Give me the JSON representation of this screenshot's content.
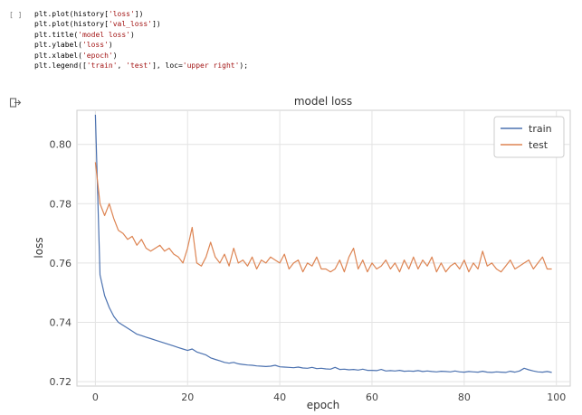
{
  "cell": {
    "run_bracket": "[ ]",
    "code_lines": [
      [
        {
          "t": "plt.plot(history["
        },
        {
          "t": "'loss'",
          "s": 1
        },
        {
          "t": "])"
        }
      ],
      [
        {
          "t": "plt.plot(history["
        },
        {
          "t": "'val_loss'",
          "s": 1
        },
        {
          "t": "])"
        }
      ],
      [
        {
          "t": "plt.title("
        },
        {
          "t": "'model loss'",
          "s": 1
        },
        {
          "t": ")"
        }
      ],
      [
        {
          "t": "plt.ylabel("
        },
        {
          "t": "'loss'",
          "s": 1
        },
        {
          "t": ")"
        }
      ],
      [
        {
          "t": "plt.xlabel("
        },
        {
          "t": "'epoch'",
          "s": 1
        },
        {
          "t": ")"
        }
      ],
      [
        {
          "t": "plt.legend(["
        },
        {
          "t": "'train'",
          "s": 1
        },
        {
          "t": ", "
        },
        {
          "t": "'test'",
          "s": 1
        },
        {
          "t": "], loc="
        },
        {
          "t": "'upper right'",
          "s": 1
        },
        {
          "t": ");"
        }
      ]
    ]
  },
  "output": {
    "icon": "output-arrow-icon"
  },
  "chart_data": {
    "type": "line",
    "title": "model loss",
    "xlabel": "epoch",
    "ylabel": "loss",
    "xlim": [
      -4,
      103
    ],
    "ylim": [
      0.7185,
      0.8115
    ],
    "xticks": [
      0,
      20,
      40,
      60,
      80,
      100
    ],
    "yticks": [
      0.72,
      0.74,
      0.76,
      0.78,
      0.8
    ],
    "ytick_labels": [
      "0.72",
      "0.74",
      "0.76",
      "0.78",
      "0.80"
    ],
    "grid": true,
    "legend_position": "top-right",
    "series": [
      {
        "name": "train",
        "color": "#4c72b0",
        "values": [
          0.81,
          0.756,
          0.749,
          0.745,
          0.742,
          0.74,
          0.739,
          0.738,
          0.737,
          0.736,
          0.7355,
          0.735,
          0.7345,
          0.734,
          0.7335,
          0.733,
          0.7325,
          0.732,
          0.7315,
          0.731,
          0.7305,
          0.731,
          0.73,
          0.7295,
          0.729,
          0.728,
          0.7275,
          0.727,
          0.7265,
          0.7262,
          0.7265,
          0.726,
          0.7258,
          0.7256,
          0.7255,
          0.7253,
          0.7252,
          0.7251,
          0.7252,
          0.7255,
          0.725,
          0.7249,
          0.7248,
          0.7247,
          0.7249,
          0.7246,
          0.7245,
          0.7248,
          0.7244,
          0.7245,
          0.7243,
          0.7242,
          0.7248,
          0.7241,
          0.7242,
          0.724,
          0.7241,
          0.7239,
          0.7242,
          0.7238,
          0.7238,
          0.7237,
          0.7241,
          0.7236,
          0.7237,
          0.7236,
          0.7238,
          0.7235,
          0.7236,
          0.7235,
          0.7237,
          0.7234,
          0.7236,
          0.7234,
          0.7233,
          0.7235,
          0.7234,
          0.7233,
          0.7236,
          0.7233,
          0.7232,
          0.7234,
          0.7233,
          0.7232,
          0.7235,
          0.7232,
          0.7231,
          0.7233,
          0.7232,
          0.7231,
          0.7235,
          0.7232,
          0.7236,
          0.7245,
          0.724,
          0.7236,
          0.7233,
          0.7232,
          0.7234,
          0.7231
        ]
      },
      {
        "name": "test",
        "color": "#dd8452",
        "values": [
          0.794,
          0.78,
          0.776,
          0.78,
          0.775,
          0.771,
          0.77,
          0.768,
          0.769,
          0.766,
          0.768,
          0.765,
          0.764,
          0.765,
          0.766,
          0.764,
          0.765,
          0.763,
          0.762,
          0.76,
          0.765,
          0.772,
          0.76,
          0.759,
          0.762,
          0.767,
          0.762,
          0.76,
          0.763,
          0.759,
          0.765,
          0.76,
          0.761,
          0.759,
          0.762,
          0.758,
          0.761,
          0.76,
          0.762,
          0.761,
          0.76,
          0.763,
          0.758,
          0.76,
          0.761,
          0.757,
          0.76,
          0.759,
          0.762,
          0.758,
          0.758,
          0.757,
          0.758,
          0.761,
          0.757,
          0.762,
          0.765,
          0.758,
          0.761,
          0.757,
          0.76,
          0.758,
          0.759,
          0.761,
          0.758,
          0.76,
          0.757,
          0.761,
          0.758,
          0.762,
          0.758,
          0.761,
          0.759,
          0.762,
          0.757,
          0.76,
          0.757,
          0.759,
          0.76,
          0.758,
          0.761,
          0.757,
          0.76,
          0.758,
          0.764,
          0.759,
          0.76,
          0.758,
          0.757,
          0.759,
          0.761,
          0.758,
          0.759,
          0.76,
          0.761,
          0.758,
          0.76,
          0.762,
          0.758,
          0.758
        ]
      }
    ]
  }
}
